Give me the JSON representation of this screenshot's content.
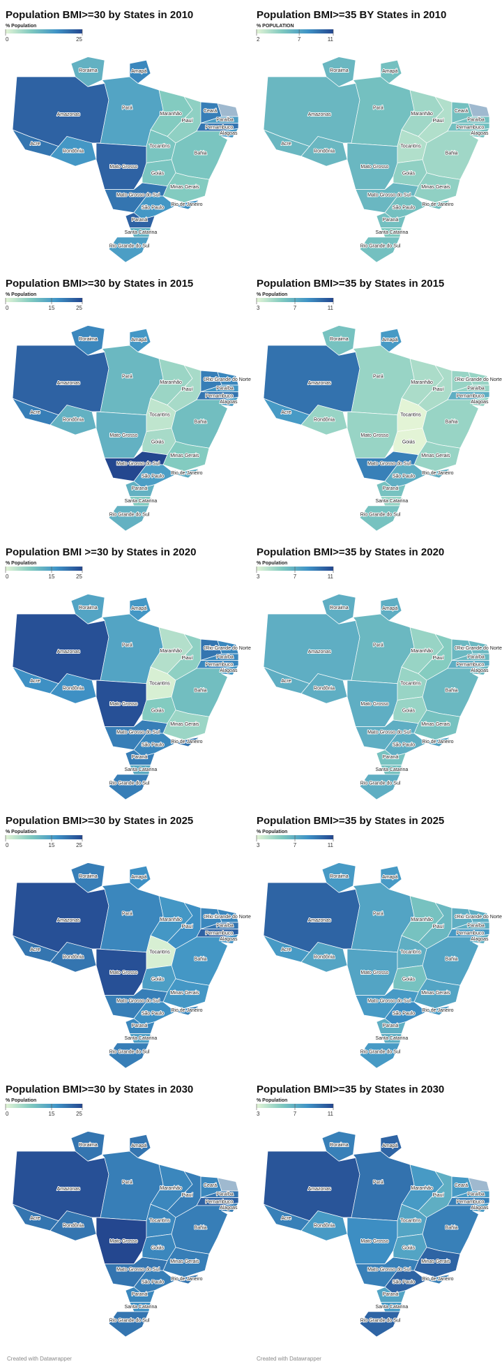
{
  "scale_colors": [
    "#e3f4d6",
    "#7fc9bf",
    "#3f93c6",
    "#24478f"
  ],
  "maps": [
    {
      "title": "Population BMI>=30 by States in 2010",
      "legend_title": "% Population",
      "ticks": [
        0,
        25
      ],
      "states": [
        {
          "name": "Roraima",
          "value": 12
        },
        {
          "name": "Amapá",
          "value": 18
        },
        {
          "name": "Amazonas",
          "value": 22
        },
        {
          "name": "Pará",
          "value": 14
        },
        {
          "name": "Maranhão",
          "value": 8
        },
        {
          "name": "Ceará",
          "value": 19
        },
        {
          "name": "Paraíba",
          "value": 15
        },
        {
          "name": "Pernambuco",
          "value": 20
        },
        {
          "name": "Alagoas",
          "value": 16
        },
        {
          "name": "Piauí",
          "value": 7
        },
        {
          "name": "Acre",
          "value": 20
        },
        {
          "name": "Rondônia",
          "value": 16
        },
        {
          "name": "Tocantins",
          "value": 9
        },
        {
          "name": "Bahia",
          "value": 9
        },
        {
          "name": "Mato Grosso",
          "value": 22
        },
        {
          "name": "Goiás",
          "value": 9
        },
        {
          "name": "Minas Gerais",
          "value": 8
        },
        {
          "name": "Mato Grosso do Sul",
          "value": 20
        },
        {
          "name": "São Paulo",
          "value": 16
        },
        {
          "name": "Rio de Janeiro",
          "value": 17
        },
        {
          "name": "Paraná",
          "value": 22
        },
        {
          "name": "Santa Catarina",
          "value": 12
        },
        {
          "name": "Rio Grande do Sul",
          "value": 15
        }
      ]
    },
    {
      "title": "Population BMI>=35 BY States in 2010",
      "legend_title": "% POPULATION",
      "ticks": [
        2,
        7,
        11
      ],
      "states": [
        {
          "name": "Roraima",
          "value": 6
        },
        {
          "name": "Amapá",
          "value": 5.5
        },
        {
          "name": "Amazonas",
          "value": 6
        },
        {
          "name": "Pará",
          "value": 5.5
        },
        {
          "name": "Maranhão",
          "value": 4
        },
        {
          "name": "Ceará",
          "value": 5.5
        },
        {
          "name": "Paraíba",
          "value": 5.5
        },
        {
          "name": "Pernambuco",
          "value": 5.5
        },
        {
          "name": "Alagoas",
          "value": 5.5
        },
        {
          "name": "Piauí",
          "value": 3.5
        },
        {
          "name": "Acre",
          "value": 6
        },
        {
          "name": "Rondônia",
          "value": 6
        },
        {
          "name": "Tocantins",
          "value": 3.5
        },
        {
          "name": "Bahia",
          "value": 4
        },
        {
          "name": "Mato Grosso",
          "value": 6
        },
        {
          "name": "Goiás",
          "value": 4.5
        },
        {
          "name": "Minas Gerais",
          "value": 4.5
        },
        {
          "name": "Mato Grosso do Sul",
          "value": 6
        },
        {
          "name": "São Paulo",
          "value": 5.5
        },
        {
          "name": "Rio de Janeiro",
          "value": 5.5
        },
        {
          "name": "Paraná",
          "value": 5.5
        },
        {
          "name": "Santa Catarina",
          "value": 5
        },
        {
          "name": "Rio Grande do Sul",
          "value": 5.5
        }
      ]
    },
    {
      "title": "Population BMI>=30 by States in 2015",
      "legend_title": "% Population",
      "ticks": [
        0,
        15,
        25
      ],
      "states": [
        {
          "name": "Roraima",
          "value": 18
        },
        {
          "name": "Amapá",
          "value": 16
        },
        {
          "name": "Amazonas",
          "value": 22
        },
        {
          "name": "Pará",
          "value": 11
        },
        {
          "name": "Maranhão",
          "value": 6
        },
        {
          "name": "Ceará",
          "value": 19
        },
        {
          "name": "Rio Grande do Norte",
          "value": 18
        },
        {
          "name": "Paraíba",
          "value": 16
        },
        {
          "name": "Pernambuco",
          "value": 20
        },
        {
          "name": "Alagoas",
          "value": 15
        },
        {
          "name": "Piauí",
          "value": 5
        },
        {
          "name": "Acre",
          "value": 19
        },
        {
          "name": "Rondônia",
          "value": 12
        },
        {
          "name": "Tocantins",
          "value": 3
        },
        {
          "name": "Bahia",
          "value": 10
        },
        {
          "name": "Mato Grosso",
          "value": 12
        },
        {
          "name": "Goiás",
          "value": 5
        },
        {
          "name": "Minas Gerais",
          "value": 8
        },
        {
          "name": "Mato Grosso do Sul",
          "value": 25
        },
        {
          "name": "São Paulo",
          "value": 15
        },
        {
          "name": "Rio de Janeiro",
          "value": 13
        },
        {
          "name": "Paraná",
          "value": 12
        },
        {
          "name": "Santa Catarina",
          "value": 8
        },
        {
          "name": "Rio Grande do Sul",
          "value": 12
        }
      ]
    },
    {
      "title": "Population BMI>=35 by States in 2015",
      "legend_title": "% Population",
      "ticks": [
        3,
        7,
        11
      ],
      "states": [
        {
          "name": "Roraima",
          "value": 6
        },
        {
          "name": "Amapá",
          "value": 8
        },
        {
          "name": "Amazonas",
          "value": 9.5
        },
        {
          "name": "Pará",
          "value": 5
        },
        {
          "name": "Maranhão",
          "value": 4.5
        },
        {
          "name": "Ceará",
          "value": 5
        },
        {
          "name": "Rio Grande do Norte",
          "value": 5
        },
        {
          "name": "Paraíba",
          "value": 5
        },
        {
          "name": "Pernambuco",
          "value": 7
        },
        {
          "name": "Alagoas",
          "value": 5
        },
        {
          "name": "Piauí",
          "value": 4.5
        },
        {
          "name": "Acre",
          "value": 8
        },
        {
          "name": "Rondônia",
          "value": 5
        },
        {
          "name": "Tocantins",
          "value": 3
        },
        {
          "name": "Bahia",
          "value": 5
        },
        {
          "name": "Mato Grosso",
          "value": 5
        },
        {
          "name": "Goiás",
          "value": 3
        },
        {
          "name": "Minas Gerais",
          "value": 5
        },
        {
          "name": "Mato Grosso do Sul",
          "value": 9
        },
        {
          "name": "São Paulo",
          "value": 7
        },
        {
          "name": "Rio de Janeiro",
          "value": 7
        },
        {
          "name": "Paraná",
          "value": 6
        },
        {
          "name": "Santa Catarina",
          "value": 5
        },
        {
          "name": "Rio Grande do Sul",
          "value": 6
        }
      ]
    },
    {
      "title": "Population BMI >=30 by States in 2020",
      "legend_title": "% Population",
      "ticks": [
        0,
        15,
        25
      ],
      "states": [
        {
          "name": "Roraima",
          "value": 14
        },
        {
          "name": "Amapá",
          "value": 16
        },
        {
          "name": "Amazonas",
          "value": 24
        },
        {
          "name": "Pará",
          "value": 14
        },
        {
          "name": "Maranhão",
          "value": 4
        },
        {
          "name": "Ceará",
          "value": 20
        },
        {
          "name": "Rio Grande do Norte",
          "value": 18
        },
        {
          "name": "Paraíba",
          "value": 18
        },
        {
          "name": "Pernambuco",
          "value": 18
        },
        {
          "name": "Alagoas",
          "value": 16
        },
        {
          "name": "Piauí",
          "value": 7
        },
        {
          "name": "Acre",
          "value": 17
        },
        {
          "name": "Rondônia",
          "value": 17
        },
        {
          "name": "Tocantins",
          "value": 1
        },
        {
          "name": "Bahia",
          "value": 10
        },
        {
          "name": "Mato Grosso",
          "value": 24
        },
        {
          "name": "Goiás",
          "value": 8
        },
        {
          "name": "Minas Gerais",
          "value": 6
        },
        {
          "name": "Mato Grosso do Sul",
          "value": 19
        },
        {
          "name": "São Paulo",
          "value": 18
        },
        {
          "name": "Rio de Janeiro",
          "value": 20
        },
        {
          "name": "Paraná",
          "value": 19
        },
        {
          "name": "Santa Catarina",
          "value": 13
        },
        {
          "name": "Rio Grande do Sul",
          "value": 19
        }
      ]
    },
    {
      "title": "Population BMI>=35 by States in 2020",
      "legend_title": "% Population",
      "ticks": [
        3,
        7,
        11
      ],
      "states": [
        {
          "name": "Roraima",
          "value": 7
        },
        {
          "name": "Amapá",
          "value": 7
        },
        {
          "name": "Amazonas",
          "value": 7
        },
        {
          "name": "Pará",
          "value": 6.5
        },
        {
          "name": "Maranhão",
          "value": 5
        },
        {
          "name": "Ceará",
          "value": 6.5
        },
        {
          "name": "Rio Grande do Norte",
          "value": 6.5
        },
        {
          "name": "Paraíba",
          "value": 6.5
        },
        {
          "name": "Pernambuco",
          "value": 7
        },
        {
          "name": "Alagoas",
          "value": 6.5
        },
        {
          "name": "Piauí",
          "value": 5.5
        },
        {
          "name": "Acre",
          "value": 7
        },
        {
          "name": "Rondônia",
          "value": 7
        },
        {
          "name": "Tocantins",
          "value": 5
        },
        {
          "name": "Bahia",
          "value": 6.5
        },
        {
          "name": "Mato Grosso",
          "value": 7
        },
        {
          "name": "Goiás",
          "value": 5
        },
        {
          "name": "Minas Gerais",
          "value": 6
        },
        {
          "name": "Mato Grosso do Sul",
          "value": 7
        },
        {
          "name": "São Paulo",
          "value": 7
        },
        {
          "name": "Rio de Janeiro",
          "value": 7.5
        },
        {
          "name": "Paraná",
          "value": 6
        },
        {
          "name": "Santa Catarina",
          "value": 6
        },
        {
          "name": "Rio Grande do Sul",
          "value": 7
        }
      ]
    },
    {
      "title": "Population BMI>=30 by States in 2025",
      "legend_title": "% Population",
      "ticks": [
        0,
        15,
        25
      ],
      "states": [
        {
          "name": "Roraima",
          "value": 19
        },
        {
          "name": "Amapá",
          "value": 17
        },
        {
          "name": "Amazonas",
          "value": 24
        },
        {
          "name": "Pará",
          "value": 18
        },
        {
          "name": "Maranhão",
          "value": 16
        },
        {
          "name": "Ceará",
          "value": 18
        },
        {
          "name": "Rio Grande do Norte",
          "value": 18
        },
        {
          "name": "Paraíba",
          "value": 20
        },
        {
          "name": "Pernambuco",
          "value": 22
        },
        {
          "name": "Alagoas",
          "value": 17
        },
        {
          "name": "Piauí",
          "value": 17
        },
        {
          "name": "Acre",
          "value": 20
        },
        {
          "name": "Rondônia",
          "value": 20
        },
        {
          "name": "Tocantins",
          "value": 1
        },
        {
          "name": "Bahia",
          "value": 16
        },
        {
          "name": "Mato Grosso",
          "value": 24
        },
        {
          "name": "Goiás",
          "value": 15
        },
        {
          "name": "Minas Gerais",
          "value": 16
        },
        {
          "name": "Mato Grosso do Sul",
          "value": 19
        },
        {
          "name": "São Paulo",
          "value": 17
        },
        {
          "name": "Rio de Janeiro",
          "value": 18
        },
        {
          "name": "Paraná",
          "value": 18
        },
        {
          "name": "Santa Catarina",
          "value": 15
        },
        {
          "name": "Rio Grande do Sul",
          "value": 19
        }
      ]
    },
    {
      "title": "Population BMI>=35 by States in 2025",
      "legend_title": "% Population",
      "ticks": [
        3,
        7,
        11
      ],
      "states": [
        {
          "name": "Roraima",
          "value": 8
        },
        {
          "name": "Amapá",
          "value": 8
        },
        {
          "name": "Amazonas",
          "value": 10
        },
        {
          "name": "Pará",
          "value": 7.5
        },
        {
          "name": "Maranhão",
          "value": 6
        },
        {
          "name": "Ceará",
          "value": 7
        },
        {
          "name": "Rio Grande do Norte",
          "value": 7
        },
        {
          "name": "Paraíba",
          "value": 7
        },
        {
          "name": "Pernambuco",
          "value": 8
        },
        {
          "name": "Alagoas",
          "value": 7
        },
        {
          "name": "Piauí",
          "value": 6.5
        },
        {
          "name": "Acre",
          "value": 8
        },
        {
          "name": "Rondônia",
          "value": 7.5
        },
        {
          "name": "Tocantins",
          "value": 7
        },
        {
          "name": "Bahia",
          "value": 7.5
        },
        {
          "name": "Mato Grosso",
          "value": 7.5
        },
        {
          "name": "Goiás",
          "value": 6
        },
        {
          "name": "Minas Gerais",
          "value": 7.5
        },
        {
          "name": "Mato Grosso do Sul",
          "value": 8
        },
        {
          "name": "São Paulo",
          "value": 8.5
        },
        {
          "name": "Rio de Janeiro",
          "value": 8
        },
        {
          "name": "Paraná",
          "value": 7
        },
        {
          "name": "Santa Catarina",
          "value": 7
        },
        {
          "name": "Rio Grande do Sul",
          "value": 8
        }
      ]
    },
    {
      "title": "Population BMI>=30 by States in 2030",
      "legend_title": "% Population",
      "ticks": [
        0,
        15,
        25
      ],
      "states": [
        {
          "name": "Roraima",
          "value": 20
        },
        {
          "name": "Amapá",
          "value": 20
        },
        {
          "name": "Amazonas",
          "value": 24
        },
        {
          "name": "Pará",
          "value": 19
        },
        {
          "name": "Maranhão",
          "value": 18
        },
        {
          "name": "Ceará",
          "value": 18
        },
        {
          "name": "Paraíba",
          "value": 20
        },
        {
          "name": "Pernambuco",
          "value": 22
        },
        {
          "name": "Alagoas",
          "value": 19
        },
        {
          "name": "Piauí",
          "value": 19
        },
        {
          "name": "Acre",
          "value": 20
        },
        {
          "name": "Rondônia",
          "value": 20
        },
        {
          "name": "Tocantins",
          "value": 18
        },
        {
          "name": "Bahia",
          "value": 19
        },
        {
          "name": "Mato Grosso",
          "value": 25
        },
        {
          "name": "Goiás",
          "value": 18
        },
        {
          "name": "Minas Gerais",
          "value": 19
        },
        {
          "name": "Mato Grosso do Sul",
          "value": 20
        },
        {
          "name": "São Paulo",
          "value": 19
        },
        {
          "name": "Rio de Janeiro",
          "value": 20
        },
        {
          "name": "Paraná",
          "value": 18
        },
        {
          "name": "Santa Catarina",
          "value": 17
        },
        {
          "name": "Rio Grande do Sul",
          "value": 20
        }
      ]
    },
    {
      "title": "Population BMI>=35 by States in 2030",
      "legend_title": "% Population",
      "ticks": [
        3,
        7,
        11
      ],
      "states": [
        {
          "name": "Roraima",
          "value": 9
        },
        {
          "name": "Amapá",
          "value": 10
        },
        {
          "name": "Amazonas",
          "value": 10.5
        },
        {
          "name": "Pará",
          "value": 9.5
        },
        {
          "name": "Maranhão",
          "value": 8
        },
        {
          "name": "Ceará",
          "value": 8
        },
        {
          "name": "Paraíba",
          "value": 8
        },
        {
          "name": "Pernambuco",
          "value": 9
        },
        {
          "name": "Alagoas",
          "value": 8
        },
        {
          "name": "Piauí",
          "value": 7
        },
        {
          "name": "Acre",
          "value": 9
        },
        {
          "name": "Rondônia",
          "value": 8
        },
        {
          "name": "Tocantins",
          "value": 7.5
        },
        {
          "name": "Bahia",
          "value": 9
        },
        {
          "name": "Mato Grosso",
          "value": 8.5
        },
        {
          "name": "Goiás",
          "value": 7.5
        },
        {
          "name": "Minas Gerais",
          "value": 10
        },
        {
          "name": "Mato Grosso do Sul",
          "value": 9
        },
        {
          "name": "São Paulo",
          "value": 10
        },
        {
          "name": "Rio de Janeiro",
          "value": 9
        },
        {
          "name": "Paraná",
          "value": 7.5
        },
        {
          "name": "Santa Catarina",
          "value": 8
        },
        {
          "name": "Rio Grande do Sul",
          "value": 10
        }
      ]
    }
  ],
  "footers": [
    "Created with Datawrapper",
    "Created with Datawrapper"
  ]
}
